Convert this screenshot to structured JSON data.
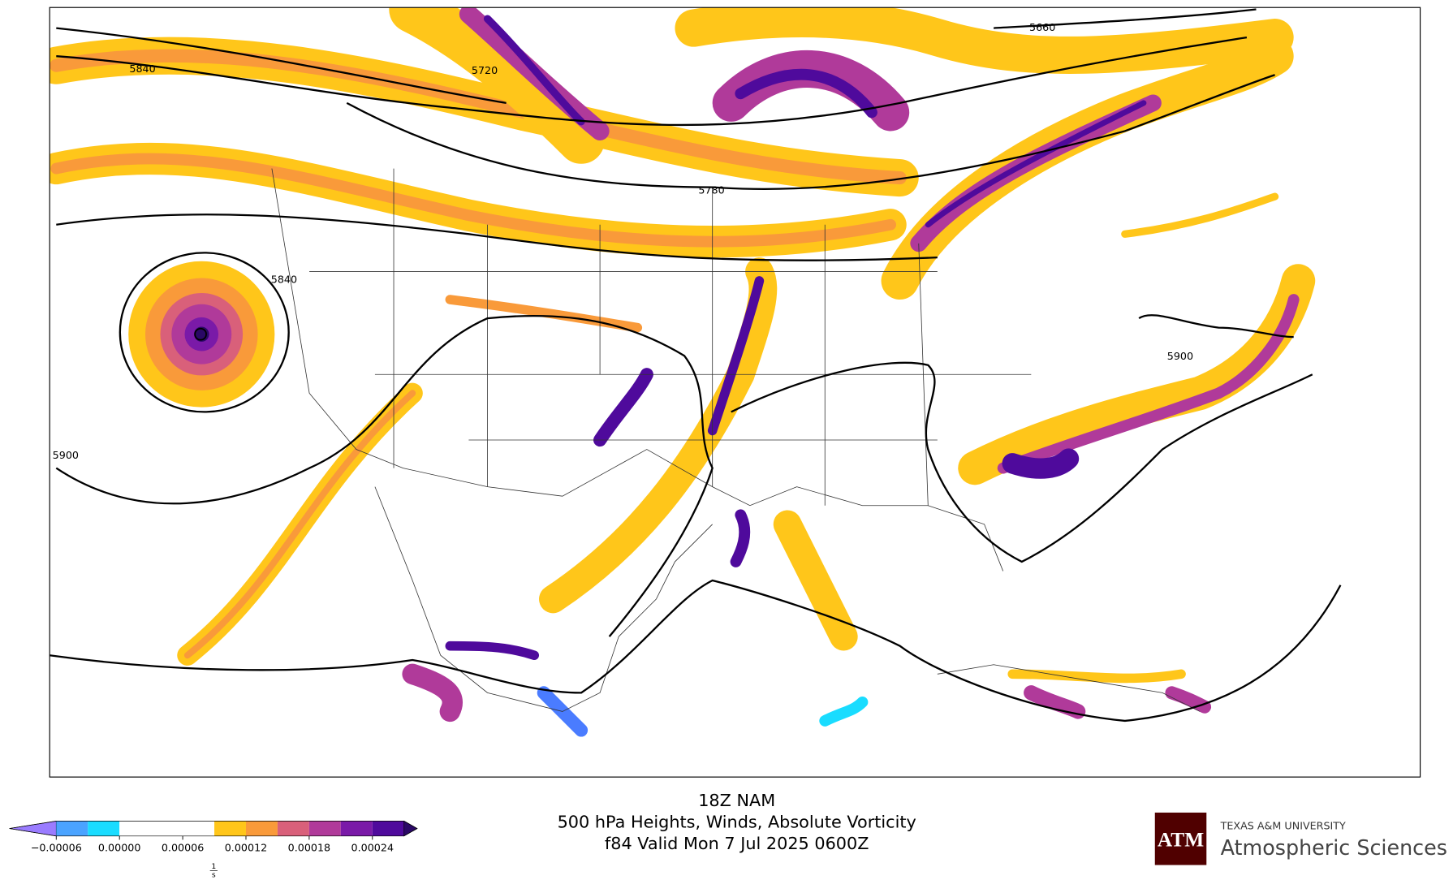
{
  "title_lines": [
    "18Z NAM",
    "500 hPa Heights, Winds, Absolute Vorticity",
    "f84 Valid Mon 7 Jul 2025 0600Z"
  ],
  "contour_labels": [
    "5840",
    "5720",
    "5660",
    "5780",
    "5840",
    "5900",
    "5900"
  ],
  "colorbar": {
    "levels": [
      -6e-05,
      -3e-05,
      0,
      9e-05,
      0.00012,
      0.00015,
      0.00018,
      0.00021,
      0.00024,
      0.00027
    ],
    "colors": [
      "#4aa3ff",
      "#19dcff",
      "#ffffff",
      "#ffc61a",
      "#f99a3a",
      "#d9607a",
      "#b03a9a",
      "#7a1aa8",
      "#4f0a9c"
    ],
    "under_color": "#9a7cff",
    "over_color": "#2a0866",
    "ticks": [
      {
        "value": -6e-05,
        "label": "−0.00006"
      },
      {
        "value": 0,
        "label": "0.00000"
      },
      {
        "value": 6e-05,
        "label": "0.00006"
      },
      {
        "value": 0.00012,
        "label": "0.00012"
      },
      {
        "value": 0.00018,
        "label": "0.00018"
      },
      {
        "value": 0.00024,
        "label": "0.00024"
      }
    ],
    "unit_numerator": "1",
    "unit_denominator": "s"
  },
  "logo": {
    "mark": "ATM",
    "university": "TEXAS A&M UNIVERSITY",
    "department": "Atmospheric Sciences"
  }
}
